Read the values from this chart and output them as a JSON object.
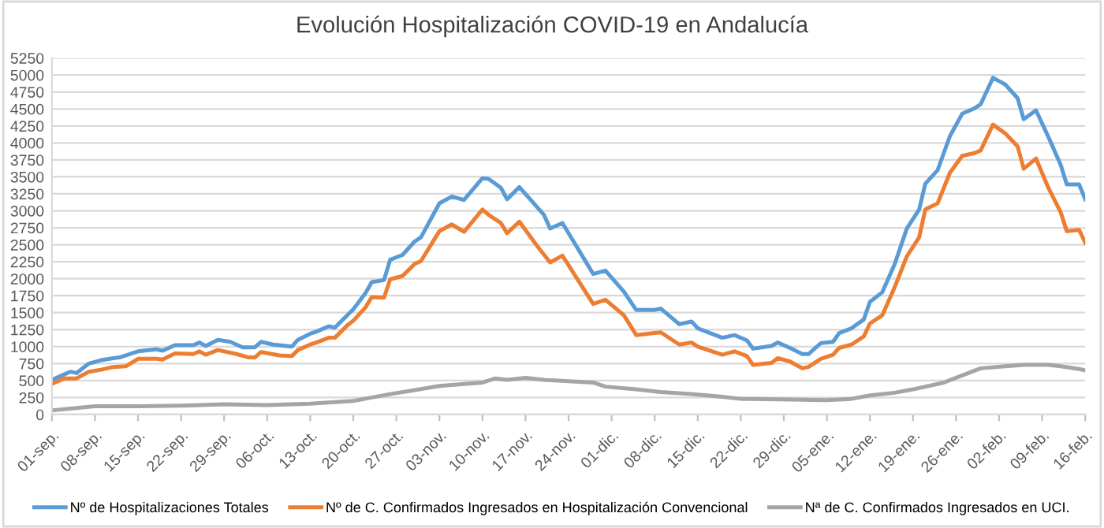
{
  "chart_data": {
    "type": "line",
    "title": "Evolución Hospitalización COVID-19 en Andalucía",
    "categories": [
      "01-sep.",
      null,
      null,
      null,
      null,
      null,
      null,
      "08-sep.",
      null,
      null,
      null,
      null,
      null,
      null,
      "15-sep.",
      null,
      null,
      null,
      null,
      null,
      null,
      "22-sep.",
      null,
      null,
      null,
      null,
      null,
      null,
      "29-sep.",
      null,
      null,
      null,
      null,
      null,
      null,
      "06-oct.",
      null,
      null,
      null,
      null,
      null,
      null,
      "13-oct.",
      null,
      null,
      null,
      null,
      null,
      null,
      "20-oct.",
      null,
      null,
      null,
      null,
      null,
      null,
      "27-oct.",
      null,
      null,
      null,
      null,
      null,
      null,
      "03-nov.",
      null,
      null,
      null,
      null,
      null,
      null,
      "10-nov.",
      null,
      null,
      null,
      null,
      null,
      null,
      "17-nov.",
      null,
      null,
      null,
      null,
      null,
      null,
      "24-nov.",
      null,
      null,
      null,
      null,
      null,
      null,
      "01-dic.",
      null,
      null,
      null,
      null,
      null,
      null,
      "08-dic.",
      null,
      null,
      null,
      null,
      null,
      null,
      "15-dic.",
      null,
      null,
      null,
      null,
      null,
      null,
      "22-dic.",
      null,
      null,
      null,
      null,
      null,
      null,
      "29-dic.",
      null,
      null,
      null,
      null,
      null,
      null,
      "05-ene.",
      null,
      null,
      null,
      null,
      null,
      null,
      "12-ene.",
      null,
      null,
      null,
      null,
      null,
      null,
      "19-ene.",
      null,
      null,
      null,
      null,
      null,
      null,
      "26-ene.",
      null,
      null,
      null,
      null,
      null,
      null,
      "02-feb.",
      null,
      null,
      null,
      null,
      null,
      null,
      "09-feb.",
      null,
      null,
      null,
      null,
      null,
      null,
      "16-feb."
    ],
    "ylim": [
      0,
      5250
    ],
    "yticks": [
      0,
      250,
      500,
      750,
      1000,
      1250,
      1500,
      1750,
      2000,
      2250,
      2500,
      2750,
      3000,
      3250,
      3500,
      3750,
      4000,
      4250,
      4500,
      4750,
      5000,
      5250
    ],
    "grid": "y",
    "legend": "bottom",
    "marker": "none",
    "line_style": "solid",
    "series": [
      {
        "name": "Nº de Hospitalizaciones Totales",
        "color": "#5b9bd5",
        "values": [
          510,
          null,
          590,
          630,
          610,
          null,
          750,
          null,
          800,
          null,
          830,
          840,
          null,
          null,
          930,
          null,
          null,
          960,
          940,
          null,
          1020,
          null,
          null,
          1020,
          1060,
          1010,
          null,
          1100,
          null,
          1070,
          1030,
          990,
          null,
          990,
          1070,
          null,
          1030,
          null,
          null,
          1000,
          1100,
          null,
          1190,
          1220,
          null,
          1300,
          1280,
          null,
          1460,
          1550,
          null,
          1790,
          1950,
          null,
          1980,
          2280,
          null,
          2350,
          null,
          2550,
          2610,
          null,
          null,
          3110,
          null,
          3210,
          null,
          3160,
          null,
          null,
          3480,
          3470,
          null,
          3340,
          3170,
          null,
          3350,
          null,
          null,
          null,
          2940,
          2740,
          null,
          2820,
          null,
          null,
          null,
          null,
          2070,
          null,
          2120,
          null,
          null,
          1810,
          null,
          1540,
          null,
          null,
          1540,
          1560,
          null,
          null,
          1330,
          null,
          1370,
          1270,
          null,
          null,
          null,
          1130,
          null,
          1170,
          null,
          1090,
          970,
          null,
          null,
          1010,
          1060,
          null,
          980,
          null,
          890,
          890,
          null,
          1050,
          null,
          1070,
          1200,
          null,
          1270,
          null,
          1400,
          1660,
          null,
          1800,
          null,
          2210,
          null,
          2740,
          null,
          3020,
          3400,
          null,
          3600,
          null,
          4100,
          null,
          4430,
          null,
          4510,
          4570,
          null,
          4960,
          null,
          4860,
          null,
          4660,
          4350,
          null,
          4480,
          null,
          4090,
          null,
          3680,
          3390,
          null,
          3390,
          3170
        ]
      },
      {
        "name": "Nº de C. Confirmados Ingresados en Hospitalización Convencional",
        "color": "#ed7d31",
        "values": [
          450,
          null,
          530,
          null,
          530,
          null,
          630,
          null,
          660,
          null,
          700,
          null,
          710,
          null,
          820,
          null,
          null,
          820,
          810,
          null,
          900,
          null,
          null,
          890,
          930,
          880,
          null,
          950,
          null,
          null,
          890,
          null,
          840,
          840,
          920,
          null,
          null,
          870,
          null,
          860,
          950,
          null,
          1030,
          1060,
          null,
          1130,
          1130,
          null,
          1310,
          1380,
          null,
          1580,
          1730,
          null,
          1720,
          1990,
          null,
          2040,
          null,
          2220,
          2260,
          null,
          null,
          2700,
          null,
          2800,
          null,
          2690,
          null,
          null,
          3020,
          2940,
          null,
          2820,
          2670,
          null,
          2840,
          null,
          null,
          2470,
          null,
          2240,
          null,
          2340,
          null,
          null,
          null,
          null,
          1630,
          null,
          1690,
          null,
          null,
          1460,
          null,
          1170,
          null,
          null,
          1200,
          1210,
          null,
          null,
          1030,
          null,
          1060,
          1000,
          null,
          null,
          null,
          880,
          null,
          930,
          null,
          860,
          730,
          null,
          null,
          760,
          830,
          null,
          780,
          null,
          680,
          700,
          null,
          820,
          null,
          880,
          980,
          null,
          1030,
          null,
          1150,
          1340,
          null,
          1460,
          null,
          1870,
          null,
          2330,
          null,
          2610,
          3020,
          null,
          3110,
          null,
          3560,
          null,
          3810,
          null,
          3850,
          3890,
          null,
          4270,
          null,
          4140,
          null,
          3950,
          3620,
          null,
          3770,
          null,
          3340,
          null,
          2980,
          2700,
          null,
          2720,
          2530
        ]
      },
      {
        "name": "Nª de C. Confirmados Ingresados en UCI.",
        "color": "#a5a5a5",
        "values": [
          60,
          null,
          null,
          null,
          null,
          null,
          null,
          120,
          null,
          null,
          null,
          null,
          null,
          null,
          120,
          null,
          null,
          null,
          null,
          null,
          null,
          130,
          null,
          null,
          null,
          null,
          null,
          null,
          150,
          null,
          null,
          null,
          null,
          null,
          null,
          140,
          null,
          null,
          null,
          null,
          null,
          null,
          160,
          null,
          null,
          null,
          null,
          null,
          null,
          200,
          null,
          null,
          250,
          null,
          null,
          300,
          null,
          null,
          null,
          360,
          null,
          null,
          null,
          420,
          null,
          null,
          null,
          450,
          null,
          null,
          470,
          null,
          530,
          null,
          510,
          null,
          null,
          540,
          null,
          null,
          510,
          null,
          null,
          null,
          490,
          null,
          null,
          null,
          470,
          null,
          410,
          null,
          null,
          null,
          null,
          370,
          null,
          null,
          null,
          330,
          null,
          null,
          null,
          null,
          300,
          null,
          null,
          null,
          null,
          260,
          null,
          null,
          230,
          null,
          230,
          null,
          null,
          null,
          null,
          null,
          220,
          null,
          null,
          null,
          null,
          null,
          210,
          null,
          null,
          null,
          230,
          null,
          null,
          280,
          null,
          null,
          null,
          320,
          null,
          null,
          370,
          null,
          null,
          null,
          null,
          470,
          null,
          540,
          null,
          null,
          null,
          680,
          null,
          null,
          null,
          710,
          null,
          null,
          730,
          null,
          null,
          null,
          730,
          null,
          710,
          null,
          null,
          670,
          650
        ]
      }
    ]
  }
}
